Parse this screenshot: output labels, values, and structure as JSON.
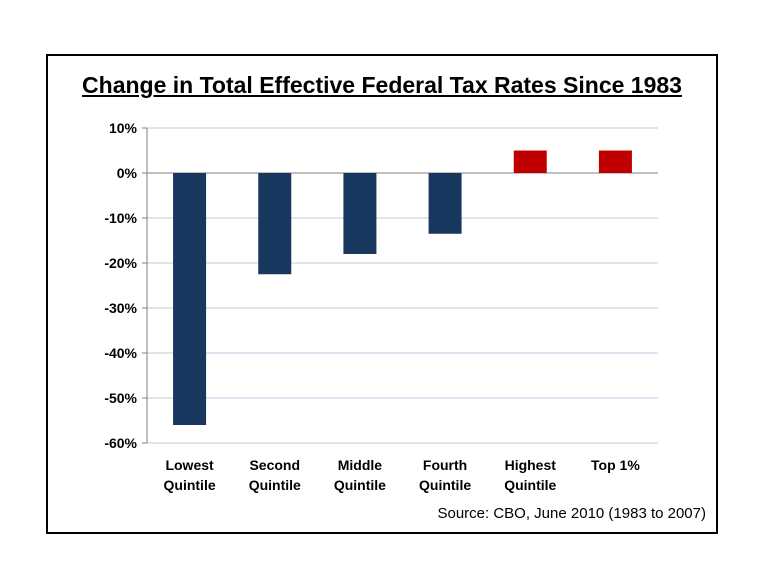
{
  "chart_data": {
    "type": "bar",
    "title": "Change in Total Effective Federal Tax Rates Since 1983",
    "categories": [
      [
        "Lowest",
        "Quintile"
      ],
      [
        "Second",
        "Quintile"
      ],
      [
        "Middle",
        "Quintile"
      ],
      [
        "Fourth",
        "Quintile"
      ],
      [
        "Highest",
        "Quintile"
      ],
      [
        "Top 1%"
      ]
    ],
    "values": [
      -56,
      -22.5,
      -18,
      -13.5,
      5,
      5
    ],
    "ylim": [
      -60,
      10
    ],
    "yticks": [
      10,
      0,
      -10,
      -20,
      -30,
      -40,
      -50,
      -60
    ],
    "ytick_labels": [
      "10%",
      "0%",
      "-10%",
      "-20%",
      "-30%",
      "-40%",
      "-50%",
      "-60%"
    ],
    "grid": true,
    "colors": {
      "negative": "#17375e",
      "positive": "#c00000",
      "grid": "#b9cde0",
      "zero_line": "#808080"
    },
    "source": "Source: CBO, June 2010 (1983 to 2007)"
  }
}
